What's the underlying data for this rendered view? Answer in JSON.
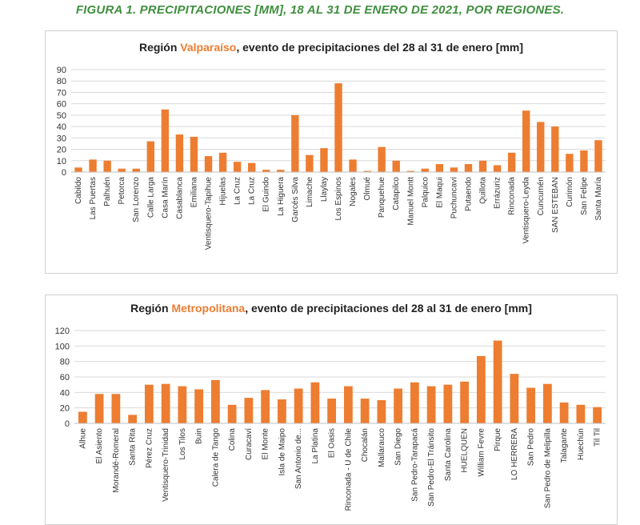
{
  "figure_title": "FIGURA 1. PRECIPITACIONES [MM], 18 AL 31 DE ENERO DE 2021, POR REGIONES.",
  "colors": {
    "bar": "#ed7d31",
    "title_green": "#3f8f3f",
    "grid": "#d9d9d9"
  },
  "chart_data": [
    {
      "type": "bar",
      "title_prefix": "Región ",
      "title_highlight": "Valparaíso",
      "title_suffix": ", evento de precipitaciones del 28 al 31 de enero [mm]",
      "ylim": [
        0,
        90
      ],
      "yticks": [
        0,
        10,
        20,
        30,
        40,
        50,
        60,
        70,
        80,
        90
      ],
      "grid": true,
      "categories": [
        "Cabildo",
        "Las Puertas",
        "Palhuén",
        "Petorca",
        "San Lorenzo",
        "Calle Larga",
        "Casa Marín",
        "Casablanca",
        "Emiliana",
        "Ventisquero-Tapihue",
        "Hijuelas",
        "La Cruz",
        "La Cruz",
        "El Guindo",
        "La Higuera",
        "Garcés Silva",
        "Limache",
        "Llaylay",
        "Los Espinos",
        "Nogales",
        "Olmué",
        "Panquehue",
        "Catapilco",
        "Manuel Montt",
        "Palquico",
        "El Maqui",
        "Puchuncaví",
        "Putaendo",
        "Quillota",
        "Errázuriz",
        "Rinconada",
        "Ventisquero-Leyda",
        "Cuncumén",
        "SAN ESTEBAN",
        "Curimón",
        "San Felipe",
        "Santa María"
      ],
      "values": [
        4,
        11,
        10,
        3,
        3,
        27,
        55,
        33,
        31,
        14,
        17,
        9,
        8,
        2,
        2,
        50,
        15,
        21,
        78,
        11,
        1,
        22,
        10,
        1,
        3,
        7,
        4,
        7,
        10,
        6,
        17,
        54,
        44,
        40,
        16,
        19,
        28
      ]
    },
    {
      "type": "bar",
      "title_prefix": "Región ",
      "title_highlight": "Metropolitana",
      "title_suffix": ", evento de precipitaciones del 28 al 31 de enero [mm]",
      "ylim": [
        0,
        120
      ],
      "yticks": [
        0,
        20,
        40,
        60,
        80,
        100,
        120
      ],
      "grid": true,
      "categories": [
        "Alhue",
        "El Asiento",
        "Morandé-Romeral",
        "Santa Rita",
        "Pérez Cruz",
        "Ventisquero-Trinidad",
        "Los Tilos",
        "Buin",
        "Calera de Tango",
        "Colina",
        "Curacaví",
        "El Monte",
        "Isla de Maipo",
        "San Antonio de...",
        "La Platina",
        "El Oasis",
        "Rinconada - U de Chile",
        "Chocalán",
        "Mallarauco",
        "San Diego",
        "San Pedro-Tarapacá",
        "San Pedro-El Tránsito",
        "Santa Carolina",
        "HUELQUEN",
        "William Fevre",
        "Pirque",
        "LO HERRERA",
        "San Pedro",
        "San Pedro de Melipilla",
        "Talagante",
        "Huechún",
        "Til Til"
      ],
      "values": [
        15,
        38,
        38,
        11,
        50,
        51,
        48,
        44,
        56,
        24,
        33,
        43,
        31,
        45,
        53,
        32,
        48,
        32,
        30,
        45,
        53,
        48,
        50,
        54,
        87,
        107,
        64,
        46,
        51,
        27,
        24,
        21
      ]
    }
  ]
}
